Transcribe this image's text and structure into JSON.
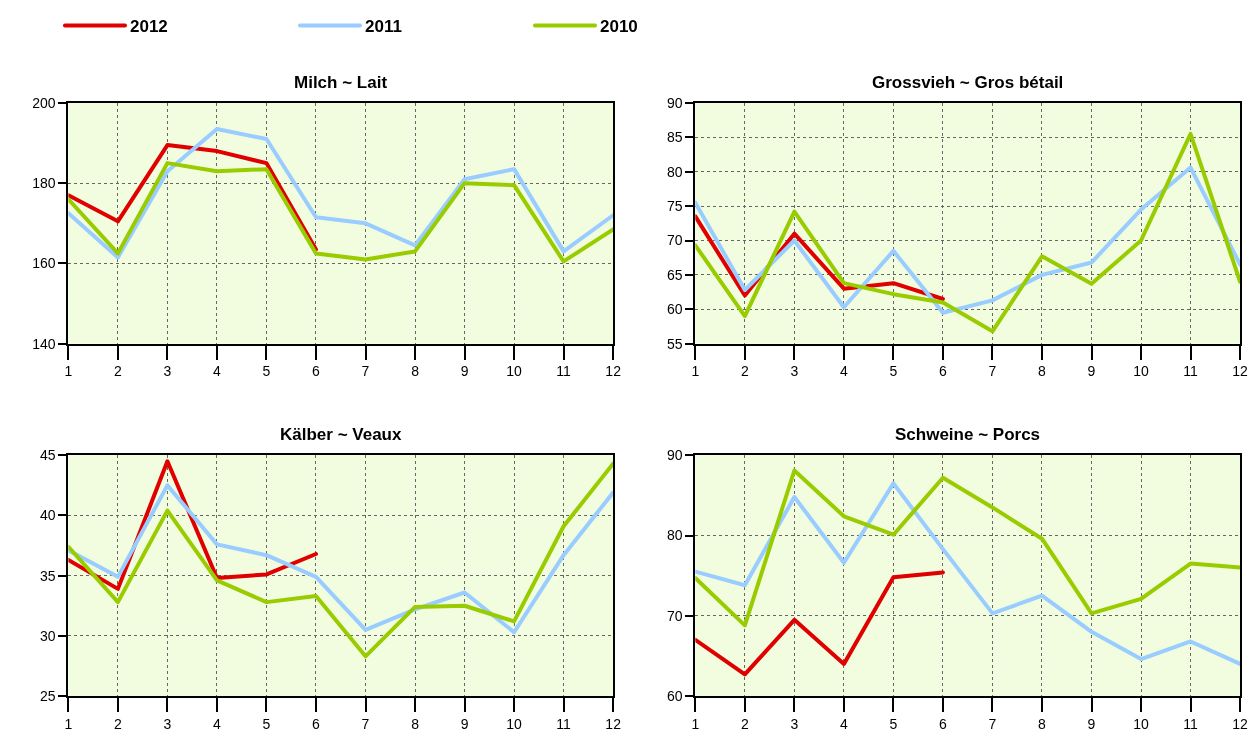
{
  "chart_data": [
    {
      "type": "line",
      "title": "Milch ~ Lait",
      "x": [
        1,
        2,
        3,
        4,
        5,
        6,
        7,
        8,
        9,
        10,
        11,
        12
      ],
      "xlim": [
        1,
        12
      ],
      "xticks": [
        1,
        2,
        3,
        4,
        5,
        6,
        7,
        8,
        9,
        10,
        11,
        12
      ],
      "ylim": [
        140,
        200
      ],
      "yticks": [
        140,
        160,
        180,
        200
      ],
      "grid": true,
      "legend": "top left",
      "line_style": "solid",
      "series": [
        {
          "name": "2012",
          "color": "#e00000",
          "x": [
            1,
            2,
            3,
            4,
            5,
            6
          ],
          "values": [
            177,
            170.5,
            189.5,
            188,
            185,
            163.5
          ]
        },
        {
          "name": "2011",
          "color": "#99ccff",
          "values": [
            172.5,
            161.5,
            183,
            193.5,
            191,
            171.5,
            170,
            164.5,
            181,
            183.5,
            163,
            172
          ]
        },
        {
          "name": "2010",
          "color": "#99cc00",
          "values": [
            176,
            162.5,
            185,
            183,
            183.5,
            162.5,
            161,
            163,
            180,
            179.5,
            160.5,
            168.5
          ]
        }
      ]
    },
    {
      "type": "line",
      "title": "Grossvieh ~ Gros bétail",
      "x": [
        1,
        2,
        3,
        4,
        5,
        6,
        7,
        8,
        9,
        10,
        11,
        12
      ],
      "xlim": [
        1,
        12
      ],
      "xticks": [
        1,
        2,
        3,
        4,
        5,
        6,
        7,
        8,
        9,
        10,
        11,
        12
      ],
      "ylim": [
        55,
        90
      ],
      "yticks": [
        55,
        60,
        65,
        70,
        75,
        80,
        85,
        90
      ],
      "grid": true,
      "line_style": "solid",
      "series": [
        {
          "name": "2012",
          "color": "#e00000",
          "x": [
            1,
            2,
            3,
            4,
            5,
            6
          ],
          "values": [
            73.5,
            62,
            71,
            63,
            63.8,
            61.5
          ]
        },
        {
          "name": "2011",
          "color": "#99ccff",
          "values": [
            75.5,
            62.8,
            70,
            60.3,
            68.5,
            59.5,
            61.3,
            65,
            66.8,
            74.5,
            80.6,
            66.5
          ]
        },
        {
          "name": "2010",
          "color": "#99cc00",
          "values": [
            69.3,
            59,
            74.2,
            63.8,
            62.2,
            61,
            56.8,
            67.7,
            63.7,
            70,
            85.5,
            64
          ]
        }
      ]
    },
    {
      "type": "line",
      "title": "Kälber ~ Veaux",
      "x": [
        1,
        2,
        3,
        4,
        5,
        6,
        7,
        8,
        9,
        10,
        11,
        12
      ],
      "xlim": [
        1,
        12
      ],
      "xticks": [
        1,
        2,
        3,
        4,
        5,
        6,
        7,
        8,
        9,
        10,
        11,
        12
      ],
      "ylim": [
        25,
        45
      ],
      "yticks": [
        25,
        30,
        35,
        40,
        45
      ],
      "grid": true,
      "line_style": "solid",
      "series": [
        {
          "name": "2012",
          "color": "#e00000",
          "x": [
            1,
            2,
            3,
            4,
            5,
            6
          ],
          "values": [
            36.3,
            33.9,
            44.5,
            34.8,
            35.1,
            36.8
          ]
        },
        {
          "name": "2011",
          "color": "#99ccff",
          "values": [
            37.1,
            34.9,
            42.5,
            37.6,
            36.7,
            34.9,
            30.5,
            32.2,
            33.6,
            30.3,
            36.7,
            41.9
          ]
        },
        {
          "name": "2010",
          "color": "#99cc00",
          "values": [
            37.4,
            32.8,
            40.4,
            34.6,
            32.8,
            33.3,
            28.3,
            32.4,
            32.5,
            31.2,
            39.1,
            44.3
          ]
        }
      ]
    },
    {
      "type": "line",
      "title": "Schweine ~ Porcs",
      "x": [
        1,
        2,
        3,
        4,
        5,
        6,
        7,
        8,
        9,
        10,
        11,
        12
      ],
      "xlim": [
        1,
        12
      ],
      "xticks": [
        1,
        2,
        3,
        4,
        5,
        6,
        7,
        8,
        9,
        10,
        11,
        12
      ],
      "ylim": [
        60,
        90
      ],
      "yticks": [
        60,
        70,
        80,
        90
      ],
      "grid": true,
      "line_style": "solid",
      "series": [
        {
          "name": "2012",
          "color": "#e00000",
          "x": [
            1,
            2,
            3,
            4,
            5,
            6
          ],
          "values": [
            67,
            62.7,
            69.5,
            64,
            74.8,
            75.4
          ]
        },
        {
          "name": "2011",
          "color": "#99ccff",
          "values": [
            75.5,
            73.8,
            84.8,
            76.6,
            86.5,
            78.3,
            70.3,
            72.5,
            68,
            64.6,
            66.8,
            64
          ]
        },
        {
          "name": "2010",
          "color": "#99cc00",
          "values": [
            74.7,
            68.8,
            88.1,
            82.4,
            80.1,
            87.2,
            83.5,
            79.6,
            70.3,
            72.1,
            76.5,
            76
          ]
        }
      ]
    }
  ]
}
